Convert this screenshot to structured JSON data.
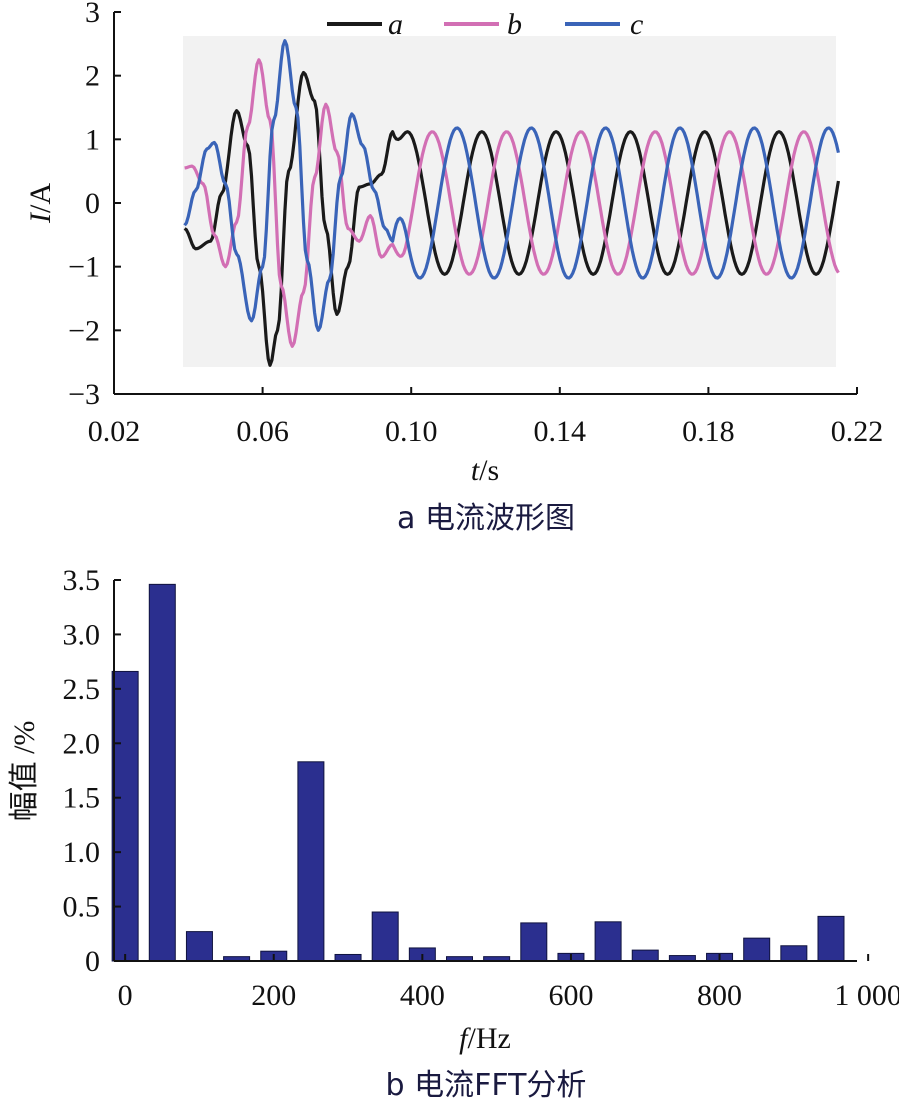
{
  "chart_data": [
    {
      "type": "line",
      "caption": "a 电流波形图",
      "xlabel_symbol": "t",
      "xlabel_unit": "/s",
      "ylabel_symbol": "I",
      "ylabel_unit": "/A",
      "xlim": [
        0.02,
        0.22
      ],
      "ylim": [
        -3,
        3
      ],
      "x_ticks": [
        "0.02",
        "0.06",
        "0.10",
        "0.14",
        "0.18",
        "0.22"
      ],
      "y_ticks": [
        "3",
        "2",
        "1",
        "0",
        "−1",
        "−2",
        "−3"
      ],
      "grid": false,
      "legend_position": "top-center",
      "plot_background": "#f2f2f2",
      "x_sample_step": 0.0005,
      "series": [
        {
          "name": "a",
          "color": "#1a1a1a",
          "x_start": 0.039,
          "x_end": 0.215,
          "transient_end": 0.095,
          "steady_amplitude": 1.12,
          "transient_peaks": [
            [
              0.039,
              -0.4
            ],
            [
              0.042,
              -0.72
            ],
            [
              0.046,
              -0.6
            ],
            [
              0.049,
              0.15
            ],
            [
              0.053,
              1.45
            ],
            [
              0.056,
              0.9
            ],
            [
              0.059,
              -1.0
            ],
            [
              0.062,
              -2.55
            ],
            [
              0.064,
              -2.0
            ],
            [
              0.067,
              0.5
            ],
            [
              0.071,
              2.05
            ],
            [
              0.074,
              1.6
            ],
            [
              0.077,
              -0.4
            ],
            [
              0.08,
              -1.75
            ],
            [
              0.083,
              -1.0
            ],
            [
              0.086,
              0.25
            ],
            [
              0.089,
              0.3
            ],
            [
              0.092,
              0.45
            ],
            [
              0.095,
              1.12
            ]
          ]
        },
        {
          "name": "b",
          "color": "#d26fb4",
          "x_start": 0.039,
          "x_end": 0.215,
          "transient_end": 0.095,
          "steady_amplitude": 1.12,
          "transient_peaks": [
            [
              0.039,
              0.55
            ],
            [
              0.041,
              0.58
            ],
            [
              0.044,
              0.3
            ],
            [
              0.047,
              -0.5
            ],
            [
              0.05,
              -1.0
            ],
            [
              0.053,
              -0.3
            ],
            [
              0.056,
              1.2
            ],
            [
              0.059,
              2.25
            ],
            [
              0.062,
              1.3
            ],
            [
              0.065,
              -1.3
            ],
            [
              0.068,
              -2.25
            ],
            [
              0.071,
              -1.4
            ],
            [
              0.074,
              0.4
            ],
            [
              0.077,
              1.55
            ],
            [
              0.08,
              0.8
            ],
            [
              0.083,
              -0.4
            ],
            [
              0.086,
              -0.6
            ],
            [
              0.089,
              -0.2
            ],
            [
              0.092,
              -0.85
            ],
            [
              0.095,
              -0.65
            ]
          ]
        },
        {
          "name": "c",
          "color": "#3a64b8",
          "x_start": 0.039,
          "x_end": 0.215,
          "transient_end": 0.095,
          "steady_amplitude": 1.18,
          "transient_peaks": [
            [
              0.039,
              -0.35
            ],
            [
              0.042,
              0.2
            ],
            [
              0.045,
              0.85
            ],
            [
              0.047,
              0.95
            ],
            [
              0.05,
              0.3
            ],
            [
              0.053,
              -0.8
            ],
            [
              0.057,
              -1.85
            ],
            [
              0.06,
              -1.0
            ],
            [
              0.063,
              1.3
            ],
            [
              0.066,
              2.55
            ],
            [
              0.069,
              1.5
            ],
            [
              0.072,
              -0.9
            ],
            [
              0.075,
              -2.0
            ],
            [
              0.078,
              -1.2
            ],
            [
              0.081,
              0.4
            ],
            [
              0.084,
              1.4
            ],
            [
              0.087,
              0.9
            ],
            [
              0.09,
              0.2
            ],
            [
              0.093,
              -0.4
            ],
            [
              0.095,
              -0.6
            ]
          ]
        }
      ]
    },
    {
      "type": "bar",
      "caption": "b 电流FFT分析",
      "xlabel_symbol": "f",
      "xlabel_unit": "/Hz",
      "ylabel": "幅值 /%",
      "xlim": [
        -15,
        985
      ],
      "ylim": [
        0,
        3.5
      ],
      "x_ticks": [
        {
          "value": 0,
          "label": "0"
        },
        {
          "value": 200,
          "label": "200"
        },
        {
          "value": 400,
          "label": "400"
        },
        {
          "value": 600,
          "label": "600"
        },
        {
          "value": 800,
          "label": "800"
        },
        {
          "value": 1000,
          "label": "1 000"
        }
      ],
      "y_ticks": [
        {
          "value": 3.5,
          "label": "3.5"
        },
        {
          "value": 3.0,
          "label": "3.0"
        },
        {
          "value": 2.5,
          "label": "2.5"
        },
        {
          "value": 2.0,
          "label": "2.0"
        },
        {
          "value": 1.5,
          "label": "1.5"
        },
        {
          "value": 1.0,
          "label": "1.0"
        },
        {
          "value": 0.5,
          "label": "0.5"
        },
        {
          "value": 0,
          "label": "0"
        }
      ],
      "bar_color": "#2b2f8f",
      "bar_width_hz": 35,
      "x": [
        0,
        50,
        100,
        150,
        200,
        250,
        300,
        350,
        400,
        450,
        500,
        550,
        600,
        650,
        700,
        750,
        800,
        850,
        900,
        950
      ],
      "values": [
        2.66,
        3.46,
        0.27,
        0.04,
        0.09,
        1.83,
        0.06,
        0.45,
        0.12,
        0.04,
        0.04,
        0.35,
        0.07,
        0.36,
        0.1,
        0.05,
        0.07,
        0.21,
        0.14,
        0.41
      ]
    }
  ]
}
